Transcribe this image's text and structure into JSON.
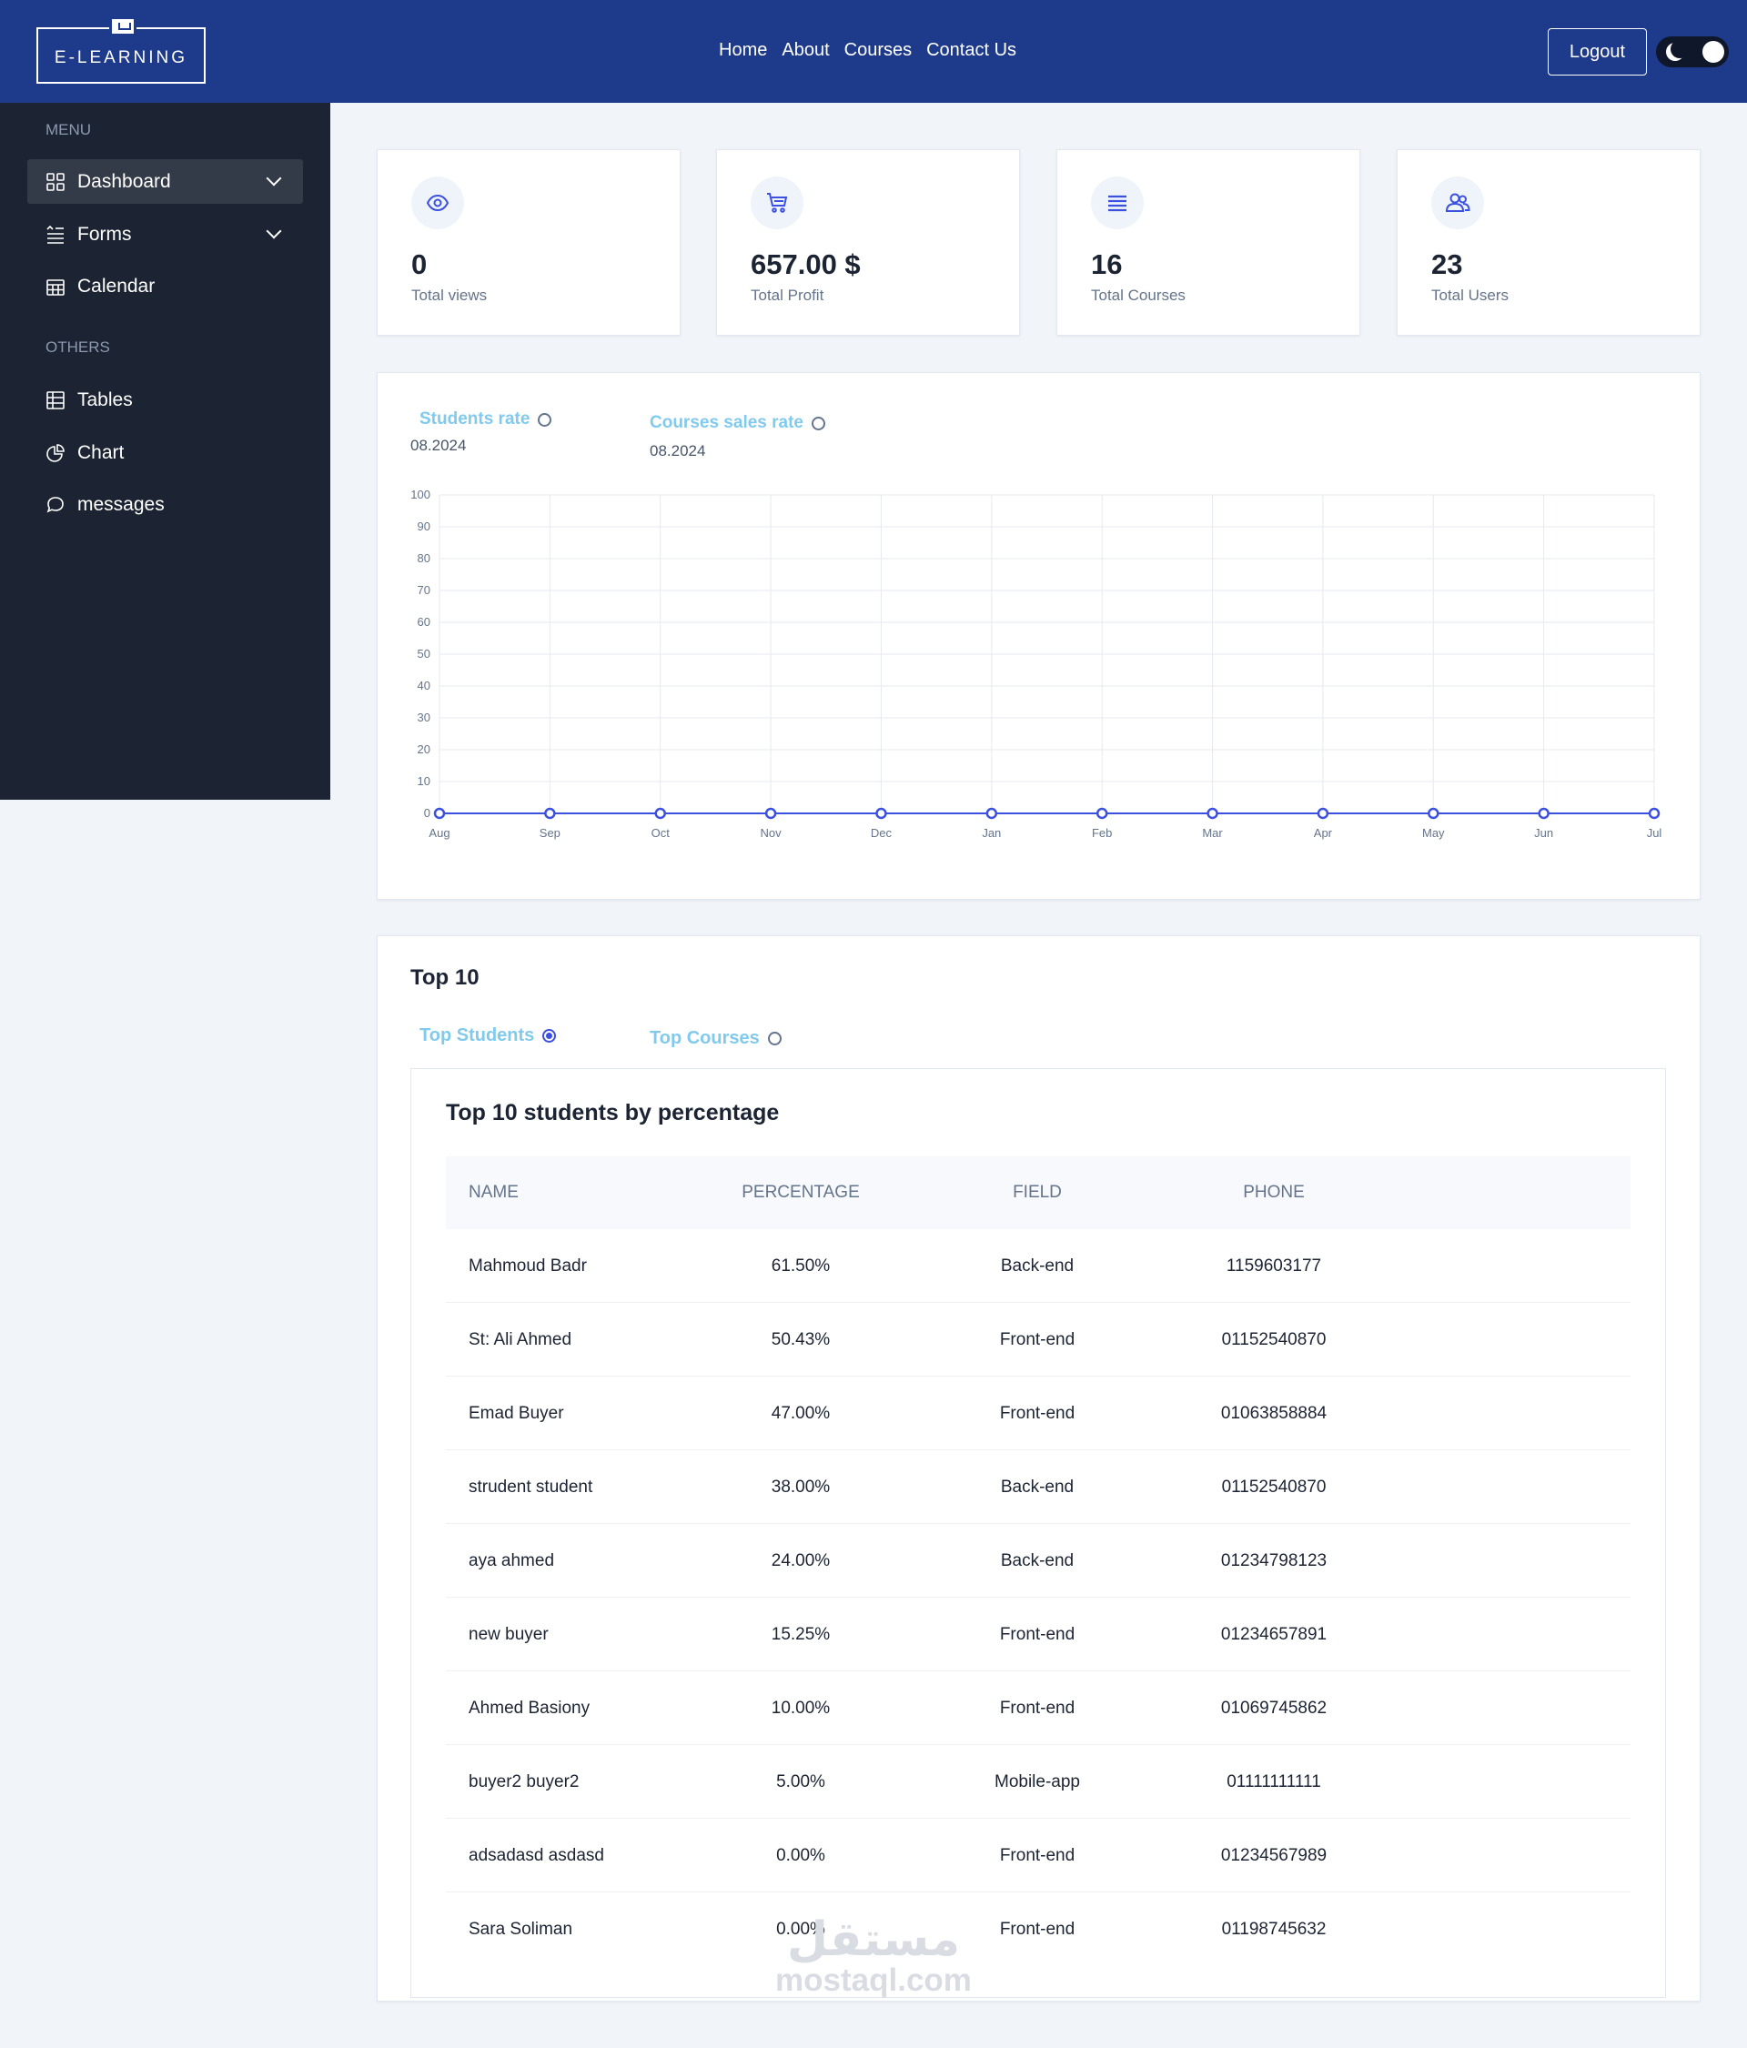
{
  "header": {
    "logo_text": "E-LEARNING",
    "nav": [
      "Home",
      "About",
      "Courses",
      "Contact Us"
    ],
    "logout_label": "Logout",
    "colors": {
      "header_bg": "#1e3a8a",
      "sidebar_bg": "#1c2434",
      "accent": "#3c50e0",
      "tab_text": "#80caee"
    }
  },
  "sidebar": {
    "menu_heading": "MENU",
    "menu_items": [
      {
        "label": "Dashboard",
        "icon": "grid-icon",
        "expandable": true,
        "active": true
      },
      {
        "label": "Forms",
        "icon": "list-icon",
        "expandable": true,
        "active": false
      },
      {
        "label": "Calendar",
        "icon": "calendar-icon",
        "expandable": false,
        "active": false
      }
    ],
    "others_heading": "OTHERS",
    "other_items": [
      {
        "label": "Tables",
        "icon": "table-icon"
      },
      {
        "label": "Chart",
        "icon": "pie-chart-icon"
      },
      {
        "label": "messages",
        "icon": "message-icon"
      }
    ]
  },
  "stats": [
    {
      "value": "0",
      "label": "Total views",
      "icon": "eye-icon"
    },
    {
      "value": "657.00 $",
      "label": "Total Profit",
      "icon": "cart-icon"
    },
    {
      "value": "16",
      "label": "Total Courses",
      "icon": "list-icon"
    },
    {
      "value": "23",
      "label": "Total Users",
      "icon": "users-icon"
    }
  ],
  "chart": {
    "legend": [
      {
        "label": "Students rate",
        "date": "08.2024"
      },
      {
        "label": "Courses sales rate",
        "date": "08.2024"
      }
    ]
  },
  "chart_data": {
    "type": "line",
    "categories": [
      "Aug",
      "Sep",
      "Oct",
      "Nov",
      "Dec",
      "Jan",
      "Feb",
      "Mar",
      "Apr",
      "May",
      "Jun",
      "Jul"
    ],
    "series": [
      {
        "name": "Students rate",
        "values": [
          0,
          0,
          0,
          0,
          0,
          0,
          0,
          0,
          0,
          0,
          0,
          0
        ]
      }
    ],
    "yticks": [
      0,
      10,
      20,
      30,
      40,
      50,
      60,
      70,
      80,
      90,
      100
    ],
    "ylim": [
      0,
      100
    ],
    "grid": true,
    "line_color": "#3c50e0"
  },
  "top10": {
    "title": "Top 10",
    "tabs": [
      {
        "label": "Top Students",
        "selected": true
      },
      {
        "label": "Top Courses",
        "selected": false
      }
    ],
    "table_title": "Top 10 students by percentage",
    "columns": [
      "NAME",
      "PERCENTAGE",
      "FIELD",
      "PHONE"
    ],
    "rows": [
      [
        "Mahmoud Badr",
        "61.50%",
        "Back-end",
        "1159603177"
      ],
      [
        "St: Ali Ahmed",
        "50.43%",
        "Front-end",
        "01152540870"
      ],
      [
        "Emad Buyer",
        "47.00%",
        "Front-end",
        "01063858884"
      ],
      [
        "strudent student",
        "38.00%",
        "Back-end",
        "01152540870"
      ],
      [
        "aya ahmed",
        "24.00%",
        "Back-end",
        "01234798123"
      ],
      [
        "new buyer",
        "15.25%",
        "Front-end",
        "01234657891"
      ],
      [
        "Ahmed Basiony",
        "10.00%",
        "Front-end",
        "01069745862"
      ],
      [
        "buyer2 buyer2",
        "5.00%",
        "Mobile-app",
        "01111111111"
      ],
      [
        "adsadasd asdasd",
        "0.00%",
        "Front-end",
        "01234567989"
      ],
      [
        "Sara Soliman",
        "0.00%",
        "Front-end",
        "01198745632"
      ]
    ]
  },
  "watermark": {
    "arabic": "مستقل",
    "latin": "mostaql.com"
  }
}
